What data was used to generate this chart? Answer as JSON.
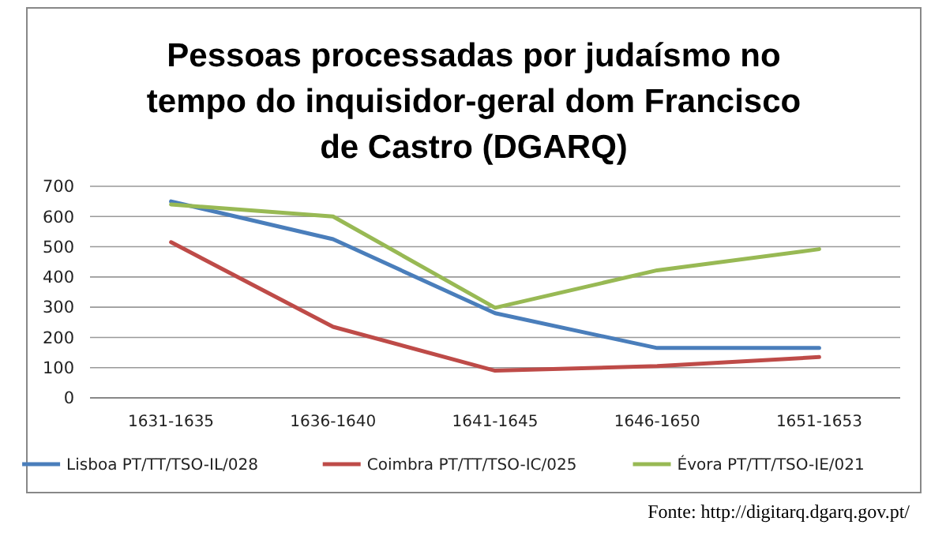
{
  "chart_data": {
    "type": "line",
    "title": "Pessoas processadas por judaísmo no tempo do inquisidor-geral dom Francisco de Castro (DGARQ)",
    "categories": [
      "1631-1635",
      "1636-1640",
      "1641-1645",
      "1646-1650",
      "1651-1653"
    ],
    "series": [
      {
        "name": "Lisboa PT/TT/TSO-IL/028",
        "color": "#4a7ebb",
        "values": [
          650,
          525,
          280,
          165,
          165
        ]
      },
      {
        "name": "Coimbra PT/TT/TSO-IC/025",
        "color": "#be4b48",
        "values": [
          515,
          235,
          90,
          105,
          135
        ]
      },
      {
        "name": "Évora PT/TT/TSO-IE/021",
        "color": "#98b954",
        "values": [
          640,
          600,
          298,
          422,
          492
        ]
      }
    ],
    "ylim": [
      0,
      700
    ],
    "yticks": [
      0,
      100,
      200,
      300,
      400,
      500,
      600,
      700
    ],
    "grid": "y",
    "legend": "bottom",
    "marker": "none",
    "line_style": "solid",
    "annotations": [
      "Fonte: http://digitarq.dgarq.gov.pt/"
    ]
  }
}
